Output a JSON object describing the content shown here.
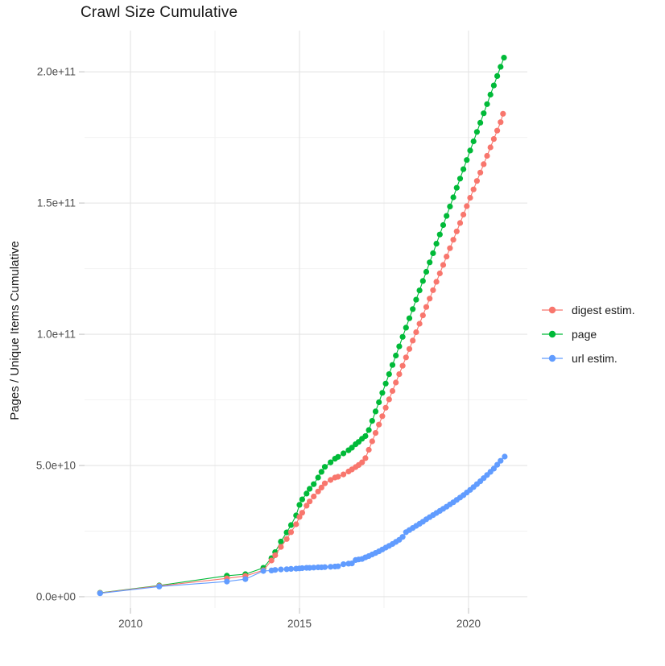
{
  "title": "Crawl Size Cumulative",
  "y_axis_title": "Pages / Unique Items Cumulative",
  "style": {
    "background": "#ffffff",
    "grid_major_color": "#e4e4e4",
    "grid_minor_color": "#f2f2f2",
    "tick_color": "#c9c9c9",
    "tick_label_color": "#4d4d4d",
    "text_color": "#1a1a1a"
  },
  "legend": {
    "items": [
      {
        "label": "digest estim.",
        "color": "#F8766D"
      },
      {
        "label": "page",
        "color": "#00BA38"
      },
      {
        "label": "url estim.",
        "color": "#619CFF"
      }
    ]
  },
  "chart_data": {
    "type": "line",
    "marker": "point",
    "title": "Crawl Size Cumulative",
    "xlabel": "",
    "ylabel": "Pages / Unique Items Cumulative",
    "unit": "billions (1e9)",
    "x_domain": [
      2008.64,
      2021.74
    ],
    "y_domain_billions": [
      -4.3,
      215.7
    ],
    "x_ticks": [
      {
        "value": 2010,
        "label": "2010"
      },
      {
        "value": 2015,
        "label": "2015"
      },
      {
        "value": 2020,
        "label": "2020"
      }
    ],
    "y_ticks": [
      {
        "value": 0,
        "label": "0.0e+00"
      },
      {
        "value": 50,
        "label": "5.0e+10"
      },
      {
        "value": 100,
        "label": "1.0e+11"
      },
      {
        "value": 150,
        "label": "1.5e+11"
      },
      {
        "value": 200,
        "label": "2.0e+11"
      }
    ],
    "x_minor_gridlines": [
      2012.5,
      2017.5
    ],
    "y_minor_gridlines": [
      25,
      75,
      125,
      175
    ],
    "grid": true,
    "legend_position": "right",
    "draw_order": [
      "page",
      "digest estim.",
      "url estim."
    ],
    "series": [
      {
        "name": "digest estim.",
        "color": "#F8766D",
        "points": [
          [
            2009.1,
            1.4
          ],
          [
            2010.85,
            4.1
          ],
          [
            2012.85,
            7.0
          ],
          [
            2013.4,
            7.9
          ],
          [
            2013.93,
            10.1
          ],
          [
            2014.17,
            13.8
          ],
          [
            2014.28,
            15.8
          ],
          [
            2014.45,
            19.0
          ],
          [
            2014.62,
            22.0
          ],
          [
            2014.75,
            24.6
          ],
          [
            2014.9,
            27.6
          ],
          [
            2015.0,
            30.4
          ],
          [
            2015.08,
            32.0
          ],
          [
            2015.21,
            34.7
          ],
          [
            2015.3,
            36.3
          ],
          [
            2015.42,
            38.2
          ],
          [
            2015.55,
            40.1
          ],
          [
            2015.65,
            41.6
          ],
          [
            2015.75,
            43.2
          ],
          [
            2015.92,
            44.5
          ],
          [
            2016.05,
            45.4
          ],
          [
            2016.14,
            45.7
          ],
          [
            2016.3,
            46.6
          ],
          [
            2016.45,
            47.7
          ],
          [
            2016.55,
            48.5
          ],
          [
            2016.66,
            49.4
          ],
          [
            2016.75,
            50.2
          ],
          [
            2016.85,
            51.2
          ],
          [
            2016.95,
            52.8
          ],
          [
            2017.05,
            56.0
          ],
          [
            2017.15,
            59.2
          ],
          [
            2017.25,
            62.4
          ],
          [
            2017.35,
            65.6
          ],
          [
            2017.45,
            68.8
          ],
          [
            2017.55,
            72.0
          ],
          [
            2017.65,
            75.2
          ],
          [
            2017.75,
            78.4
          ],
          [
            2017.85,
            81.6
          ],
          [
            2017.95,
            84.8
          ],
          [
            2018.05,
            88.0
          ],
          [
            2018.15,
            91.2
          ],
          [
            2018.25,
            94.4
          ],
          [
            2018.35,
            97.6
          ],
          [
            2018.45,
            100.8
          ],
          [
            2018.55,
            104.0
          ],
          [
            2018.65,
            107.2
          ],
          [
            2018.75,
            110.4
          ],
          [
            2018.85,
            113.6
          ],
          [
            2018.95,
            116.8
          ],
          [
            2019.05,
            120.0
          ],
          [
            2019.15,
            123.2
          ],
          [
            2019.25,
            126.4
          ],
          [
            2019.35,
            129.6
          ],
          [
            2019.45,
            132.8
          ],
          [
            2019.55,
            136.0
          ],
          [
            2019.65,
            139.2
          ],
          [
            2019.75,
            142.4
          ],
          [
            2019.85,
            145.6
          ],
          [
            2019.95,
            148.8
          ],
          [
            2020.05,
            152.0
          ],
          [
            2020.15,
            155.2
          ],
          [
            2020.25,
            158.4
          ],
          [
            2020.35,
            161.6
          ],
          [
            2020.45,
            164.8
          ],
          [
            2020.55,
            168.0
          ],
          [
            2020.65,
            171.2
          ],
          [
            2020.75,
            174.4
          ],
          [
            2020.85,
            177.6
          ],
          [
            2020.95,
            180.8
          ],
          [
            2021.02,
            184.0
          ]
        ]
      },
      {
        "name": "page",
        "color": "#00BA38",
        "points": [
          [
            2009.1,
            1.5
          ],
          [
            2010.85,
            4.3
          ],
          [
            2012.85,
            8.0
          ],
          [
            2013.4,
            8.6
          ],
          [
            2013.93,
            11.0
          ],
          [
            2014.17,
            14.7
          ],
          [
            2014.28,
            17.0
          ],
          [
            2014.45,
            21.0
          ],
          [
            2014.62,
            24.5
          ],
          [
            2014.75,
            27.3
          ],
          [
            2014.9,
            31.0
          ],
          [
            2015.0,
            35.0
          ],
          [
            2015.08,
            37.1
          ],
          [
            2015.21,
            39.3
          ],
          [
            2015.3,
            41.1
          ],
          [
            2015.42,
            42.9
          ],
          [
            2015.55,
            45.4
          ],
          [
            2015.65,
            47.6
          ],
          [
            2015.75,
            49.5
          ],
          [
            2015.92,
            51.2
          ],
          [
            2016.05,
            52.6
          ],
          [
            2016.14,
            53.3
          ],
          [
            2016.3,
            54.6
          ],
          [
            2016.45,
            55.8
          ],
          [
            2016.55,
            56.8
          ],
          [
            2016.66,
            58.1
          ],
          [
            2016.75,
            59.0
          ],
          [
            2016.85,
            60.2
          ],
          [
            2016.95,
            61.2
          ],
          [
            2017.05,
            63.5
          ],
          [
            2017.15,
            67.0
          ],
          [
            2017.25,
            70.6
          ],
          [
            2017.35,
            74.1
          ],
          [
            2017.45,
            77.7
          ],
          [
            2017.55,
            81.2
          ],
          [
            2017.65,
            84.8
          ],
          [
            2017.75,
            88.3
          ],
          [
            2017.85,
            91.9
          ],
          [
            2017.95,
            95.4
          ],
          [
            2018.05,
            99.0
          ],
          [
            2018.15,
            102.5
          ],
          [
            2018.25,
            106.1
          ],
          [
            2018.35,
            109.6
          ],
          [
            2018.45,
            113.2
          ],
          [
            2018.55,
            116.7
          ],
          [
            2018.65,
            120.3
          ],
          [
            2018.75,
            123.8
          ],
          [
            2018.85,
            127.4
          ],
          [
            2018.95,
            130.9
          ],
          [
            2019.05,
            134.5
          ],
          [
            2019.15,
            138.0
          ],
          [
            2019.25,
            141.6
          ],
          [
            2019.35,
            145.1
          ],
          [
            2019.45,
            148.7
          ],
          [
            2019.55,
            152.2
          ],
          [
            2019.65,
            155.8
          ],
          [
            2019.75,
            159.3
          ],
          [
            2019.85,
            162.9
          ],
          [
            2019.95,
            166.4
          ],
          [
            2020.05,
            170.0
          ],
          [
            2020.15,
            173.5
          ],
          [
            2020.25,
            177.1
          ],
          [
            2020.35,
            180.6
          ],
          [
            2020.45,
            184.2
          ],
          [
            2020.55,
            187.7
          ],
          [
            2020.65,
            191.3
          ],
          [
            2020.75,
            194.8
          ],
          [
            2020.85,
            198.4
          ],
          [
            2020.95,
            201.9
          ],
          [
            2021.05,
            205.4
          ]
        ]
      },
      {
        "name": "url estim.",
        "color": "#619CFF",
        "points": [
          [
            2009.1,
            1.3
          ],
          [
            2010.85,
            3.9
          ],
          [
            2012.85,
            5.8
          ],
          [
            2013.4,
            6.7
          ],
          [
            2013.93,
            9.8
          ],
          [
            2014.17,
            10.0
          ],
          [
            2014.28,
            10.2
          ],
          [
            2014.45,
            10.4
          ],
          [
            2014.62,
            10.5
          ],
          [
            2014.75,
            10.6
          ],
          [
            2014.9,
            10.7
          ],
          [
            2015.0,
            10.8
          ],
          [
            2015.08,
            10.9
          ],
          [
            2015.21,
            11.0
          ],
          [
            2015.3,
            11.0
          ],
          [
            2015.42,
            11.1
          ],
          [
            2015.55,
            11.2
          ],
          [
            2015.65,
            11.2
          ],
          [
            2015.75,
            11.3
          ],
          [
            2015.92,
            11.4
          ],
          [
            2016.05,
            11.5
          ],
          [
            2016.14,
            11.6
          ],
          [
            2016.3,
            12.4
          ],
          [
            2016.45,
            12.6
          ],
          [
            2016.55,
            12.7
          ],
          [
            2016.66,
            14.0
          ],
          [
            2016.75,
            14.2
          ],
          [
            2016.85,
            14.4
          ],
          [
            2016.95,
            15.0
          ],
          [
            2017.05,
            15.5
          ],
          [
            2017.15,
            16.1
          ],
          [
            2017.25,
            16.7
          ],
          [
            2017.35,
            17.3
          ],
          [
            2017.45,
            18.0
          ],
          [
            2017.55,
            18.7
          ],
          [
            2017.65,
            19.4
          ],
          [
            2017.75,
            20.1
          ],
          [
            2017.85,
            20.9
          ],
          [
            2017.95,
            21.7
          ],
          [
            2018.05,
            22.8
          ],
          [
            2018.15,
            24.6
          ],
          [
            2018.25,
            25.4
          ],
          [
            2018.35,
            26.2
          ],
          [
            2018.45,
            27.0
          ],
          [
            2018.55,
            27.8
          ],
          [
            2018.65,
            28.6
          ],
          [
            2018.75,
            29.5
          ],
          [
            2018.85,
            30.3
          ],
          [
            2018.95,
            31.1
          ],
          [
            2019.05,
            31.9
          ],
          [
            2019.15,
            32.7
          ],
          [
            2019.25,
            33.5
          ],
          [
            2019.35,
            34.3
          ],
          [
            2019.45,
            35.2
          ],
          [
            2019.55,
            36.0
          ],
          [
            2019.65,
            36.9
          ],
          [
            2019.75,
            37.8
          ],
          [
            2019.85,
            38.7
          ],
          [
            2019.95,
            39.7
          ],
          [
            2020.05,
            40.7
          ],
          [
            2020.15,
            41.8
          ],
          [
            2020.25,
            42.9
          ],
          [
            2020.35,
            44.0
          ],
          [
            2020.45,
            45.2
          ],
          [
            2020.55,
            46.4
          ],
          [
            2020.65,
            47.6
          ],
          [
            2020.75,
            48.8
          ],
          [
            2020.85,
            50.3
          ],
          [
            2020.95,
            51.8
          ],
          [
            2021.07,
            53.4
          ]
        ]
      }
    ]
  }
}
